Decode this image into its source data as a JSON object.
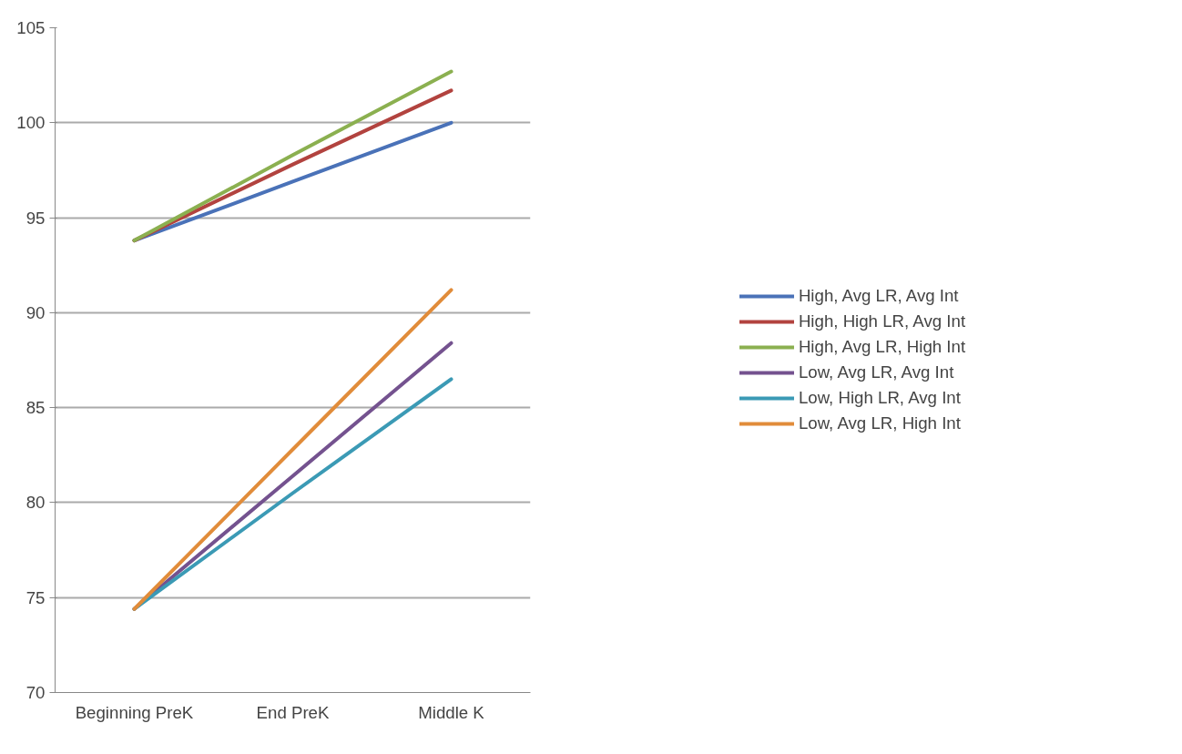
{
  "chart_data": {
    "type": "line",
    "categories": [
      "Beginning PreK",
      "End PreK",
      "Middle K"
    ],
    "series": [
      {
        "name": "High, Avg LR, Avg Int",
        "color": "#4a72b8",
        "values": [
          93.8,
          96.9,
          100.0
        ]
      },
      {
        "name": "High, High LR, Avg Int",
        "color": "#b2433f",
        "values": [
          93.8,
          97.8,
          101.7
        ]
      },
      {
        "name": "High, Avg LR, High Int",
        "color": "#8bb050",
        "values": [
          93.8,
          98.3,
          102.7
        ]
      },
      {
        "name": "Low, Avg LR, Avg Int",
        "color": "#74528f",
        "values": [
          74.4,
          81.4,
          88.4
        ]
      },
      {
        "name": "Low, High LR, Avg Int",
        "color": "#3b9ab5",
        "values": [
          74.4,
          80.5,
          86.5
        ]
      },
      {
        "name": "Low, Avg LR, High Int",
        "color": "#e18c3a",
        "values": [
          74.4,
          82.8,
          91.2
        ]
      }
    ],
    "ylim": [
      70,
      105
    ],
    "yticks": [
      70,
      75,
      80,
      85,
      90,
      95,
      100,
      105
    ],
    "grid": "y",
    "legend": "right",
    "marker": "none",
    "line_style": "solid"
  }
}
